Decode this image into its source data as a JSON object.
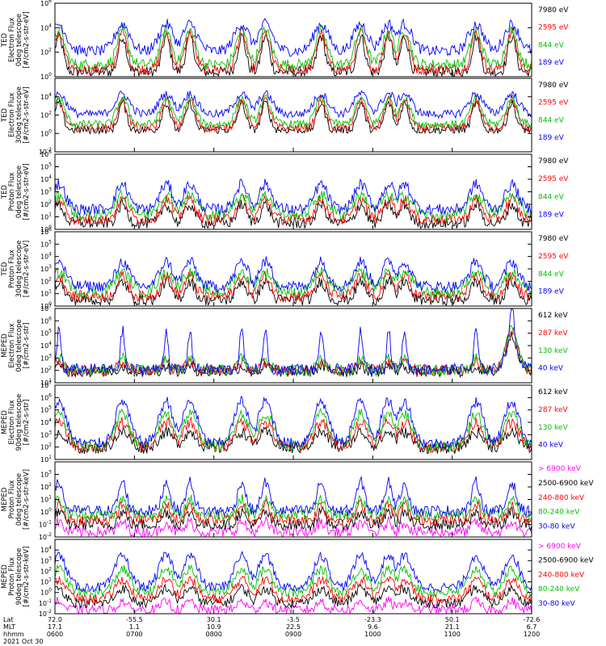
{
  "chart_data": [
    {
      "type": "line",
      "panel": 1,
      "ylabel": [
        "TED",
        "Electron Flux",
        "0deg telescope",
        "[#/cm2-s-str-eV]"
      ],
      "ylim": [
        1,
        1000000
      ],
      "yscale": "log",
      "y_ticks": [
        1,
        100,
        10000,
        1000000
      ],
      "y_tick_labels": [
        "10^0",
        "10^2",
        "10^4",
        "10^6"
      ],
      "series": [
        {
          "name": "7980 eV",
          "color": "#000000",
          "profile": "ted_hi"
        },
        {
          "name": "2595 eV",
          "color": "#ff0000",
          "profile": "ted_mid"
        },
        {
          "name": "844 eV",
          "color": "#00c000",
          "profile": "ted_low"
        },
        {
          "name": "189 eV",
          "color": "#0000ff",
          "profile": "ted_base"
        }
      ]
    },
    {
      "type": "line",
      "panel": 2,
      "ylabel": [
        "TED",
        "Electron Flux",
        "30deg telescope",
        "[#/cm2-s-str-eV]"
      ],
      "ylim": [
        0.01,
        1000000
      ],
      "yscale": "log",
      "y_ticks": [
        0.01,
        1,
        100,
        10000
      ],
      "y_tick_labels": [
        "10^-2",
        "10^0",
        "10^2",
        "10^4"
      ],
      "series": [
        {
          "name": "7980 eV",
          "color": "#000000",
          "profile": "ted_hi"
        },
        {
          "name": "2595 eV",
          "color": "#ff0000",
          "profile": "ted_mid"
        },
        {
          "name": "844 eV",
          "color": "#00c000",
          "profile": "ted_low"
        },
        {
          "name": "189 eV",
          "color": "#0000ff",
          "profile": "ted_base"
        }
      ]
    },
    {
      "type": "line",
      "panel": 3,
      "ylabel": [
        "TED",
        "Proton Flux",
        "0deg telescope",
        "[#/cm2-s-str-eV]"
      ],
      "ylim": [
        1,
        1000000
      ],
      "yscale": "log",
      "y_ticks": [
        1,
        10,
        100,
        1000,
        10000,
        100000,
        1000000
      ],
      "y_tick_labels": [
        "10^0",
        "10^1",
        "10^2",
        "10^3",
        "10^4",
        "10^5",
        "10^6"
      ],
      "series": [
        {
          "name": "7980 eV",
          "color": "#000000",
          "profile": "ted_p_hi"
        },
        {
          "name": "2595 eV",
          "color": "#ff0000",
          "profile": "ted_p_mid"
        },
        {
          "name": "844 eV",
          "color": "#00c000",
          "profile": "ted_p_low"
        },
        {
          "name": "189 eV",
          "color": "#0000ff",
          "profile": "ted_p_base"
        }
      ]
    },
    {
      "type": "line",
      "panel": 4,
      "ylabel": [
        "TED",
        "Proton Flux",
        "30deg telescope",
        "[#/cm2-s-str-eV]"
      ],
      "ylim": [
        1,
        1000000
      ],
      "yscale": "log",
      "y_ticks": [
        1,
        10,
        100,
        1000,
        10000,
        100000,
        1000000
      ],
      "y_tick_labels": [
        "10^0",
        "10^1",
        "10^2",
        "10^3",
        "10^4",
        "10^5",
        "10^6"
      ],
      "series": [
        {
          "name": "7980 eV",
          "color": "#000000",
          "profile": "ted_p_hi"
        },
        {
          "name": "2595 eV",
          "color": "#ff0000",
          "profile": "ted_p_mid"
        },
        {
          "name": "844 eV",
          "color": "#00c000",
          "profile": "ted_p_low"
        },
        {
          "name": "189 eV",
          "color": "#0000ff",
          "profile": "ted_p_base"
        }
      ]
    },
    {
      "type": "line",
      "panel": 5,
      "ylabel": [
        "MEPED",
        "Electron Flux",
        "0deg telescope",
        "[#/cm2-s-str]"
      ],
      "ylim": [
        10,
        10000000
      ],
      "yscale": "log",
      "y_ticks": [
        10,
        100,
        1000,
        10000,
        100000,
        1000000,
        10000000
      ],
      "y_tick_labels": [
        "10^1",
        "10^2",
        "10^3",
        "10^4",
        "10^5",
        "10^6",
        "10^7"
      ],
      "series": [
        {
          "name": "612 keV",
          "color": "#000000",
          "profile": "mep_e_hi"
        },
        {
          "name": "287 keV",
          "color": "#ff0000",
          "profile": "mep_e_mid"
        },
        {
          "name": "130 keV",
          "color": "#00c000",
          "profile": "mep_e_low"
        },
        {
          "name": "40 keV",
          "color": "#0000ff",
          "profile": "mep_e_base"
        }
      ]
    },
    {
      "type": "line",
      "panel": 6,
      "ylabel": [
        "MEPED",
        "Electron Flux",
        "90deg telescope",
        "[#/cm2-s-str]"
      ],
      "ylim": [
        10,
        10000000
      ],
      "yscale": "log",
      "y_ticks": [
        10,
        100,
        1000,
        10000,
        100000,
        1000000,
        10000000
      ],
      "y_tick_labels": [
        "10^1",
        "10^2",
        "10^3",
        "10^4",
        "10^5",
        "10^6",
        "10^7"
      ],
      "series": [
        {
          "name": "612 keV",
          "color": "#000000",
          "profile": "mep_e90_hi"
        },
        {
          "name": "287 keV",
          "color": "#ff0000",
          "profile": "mep_e90_mid"
        },
        {
          "name": "130 keV",
          "color": "#00c000",
          "profile": "mep_e90_low"
        },
        {
          "name": "40 keV",
          "color": "#0000ff",
          "profile": "mep_e90_base"
        }
      ]
    },
    {
      "type": "line",
      "panel": 7,
      "ylabel": [
        "MEPED",
        "Proton Flux",
        "0deg telescope",
        "[#/cm2-s-str-keV]"
      ],
      "ylim": [
        0.01,
        10000
      ],
      "yscale": "log",
      "y_ticks": [
        0.01,
        0.1,
        1,
        10,
        100,
        1000
      ],
      "y_tick_labels": [
        "10^-2",
        "10^-1",
        "10^0",
        "10^1",
        "10^2",
        "10^3"
      ],
      "series": [
        {
          "name": "> 6900 keV",
          "color": "#ff00ff",
          "profile": "mep_p_vhi"
        },
        {
          "name": "2500-6900 keV",
          "color": "#000000",
          "profile": "mep_p_hi"
        },
        {
          "name": "240-800 keV",
          "color": "#ff0000",
          "profile": "mep_p_mid"
        },
        {
          "name": "80-240 keV",
          "color": "#00c000",
          "profile": "mep_p_low"
        },
        {
          "name": "30-80 keV",
          "color": "#0000ff",
          "profile": "mep_p_base"
        }
      ]
    },
    {
      "type": "line",
      "panel": 8,
      "ylabel": [
        "MEPED",
        "Proton Flux",
        "90deg telescope",
        "[#/cm2-s-str-keV]"
      ],
      "ylim": [
        0.01,
        100000
      ],
      "yscale": "log",
      "y_ticks": [
        0.01,
        0.1,
        1,
        10,
        100,
        1000,
        10000
      ],
      "y_tick_labels": [
        "10^-2",
        "10^-1",
        "10^0",
        "10^1",
        "10^2",
        "10^3",
        "10^4"
      ],
      "series": [
        {
          "name": "> 6900 keV",
          "color": "#ff00ff",
          "profile": "mep_p_vhi"
        },
        {
          "name": "2500-6900 keV",
          "color": "#000000",
          "profile": "mep_p90_hi"
        },
        {
          "name": "240-800 keV",
          "color": "#ff0000",
          "profile": "mep_p90_mid"
        },
        {
          "name": "80-240 keV",
          "color": "#00c000",
          "profile": "mep_p90_low"
        },
        {
          "name": "30-80 keV",
          "color": "#0000ff",
          "profile": "mep_p90_base"
        }
      ]
    }
  ],
  "x_axis": {
    "row_labels": [
      "Lat",
      "MLT",
      "hhmm"
    ],
    "date_label": "2021 Oct 30",
    "ticks": [
      {
        "lat": "72.0",
        "mlt": "17.1",
        "hhmm": "0600"
      },
      {
        "lat": "-55.5",
        "mlt": "1.1",
        "hhmm": "0700"
      },
      {
        "lat": "30.1",
        "mlt": "10.9",
        "hhmm": "0800"
      },
      {
        "lat": "-3.5",
        "mlt": "22.5",
        "hhmm": "0900"
      },
      {
        "lat": "-23.3",
        "mlt": "9.6",
        "hhmm": "1000"
      },
      {
        "lat": "50.1",
        "mlt": "21.1",
        "hhmm": "1100"
      },
      {
        "lat": "-72.6",
        "mlt": "6.7",
        "hhmm": "1200"
      }
    ],
    "time_range_hours": [
      6,
      12
    ]
  }
}
